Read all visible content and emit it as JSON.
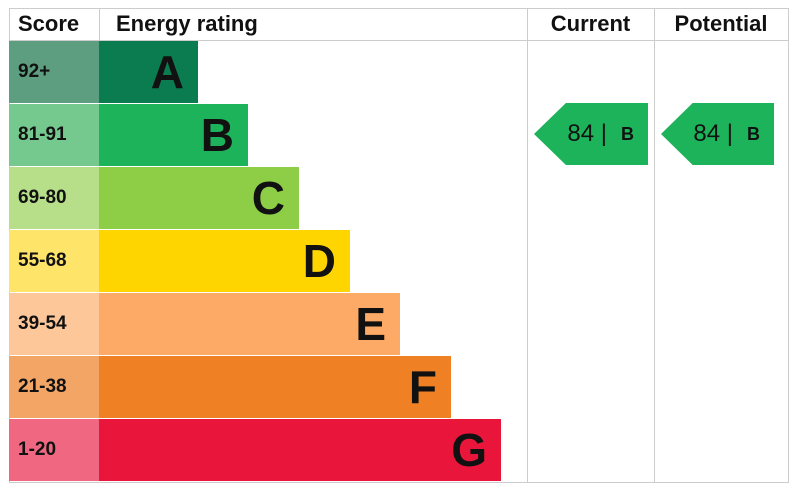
{
  "chart_data": {
    "type": "table",
    "headers": {
      "score": "Score",
      "rating": "Energy rating",
      "current": "Current",
      "potential": "Potential"
    },
    "bands": [
      {
        "score": "92+",
        "letter": "A",
        "color": "#0a7c50",
        "score_color": "#5e9e80"
      },
      {
        "score": "81-91",
        "letter": "B",
        "color": "#1db35a",
        "score_color": "#76c98e"
      },
      {
        "score": "69-80",
        "letter": "C",
        "color": "#8dce46",
        "score_color": "#b7df8a"
      },
      {
        "score": "55-68",
        "letter": "D",
        "color": "#ffd500",
        "score_color": "#ffe46a"
      },
      {
        "score": "39-54",
        "letter": "E",
        "color": "#fcaa65",
        "score_color": "#fdc79a"
      },
      {
        "score": "21-38",
        "letter": "F",
        "color": "#ef8023",
        "score_color": "#f3a566"
      },
      {
        "score": "1-20",
        "letter": "G",
        "color": "#e9153b",
        "score_color": "#ef6781"
      }
    ],
    "current": {
      "value": "84 |",
      "letter": "B",
      "color": "#1db35a"
    },
    "potential": {
      "value": "84 |",
      "letter": "B",
      "color": "#1db35a"
    }
  }
}
